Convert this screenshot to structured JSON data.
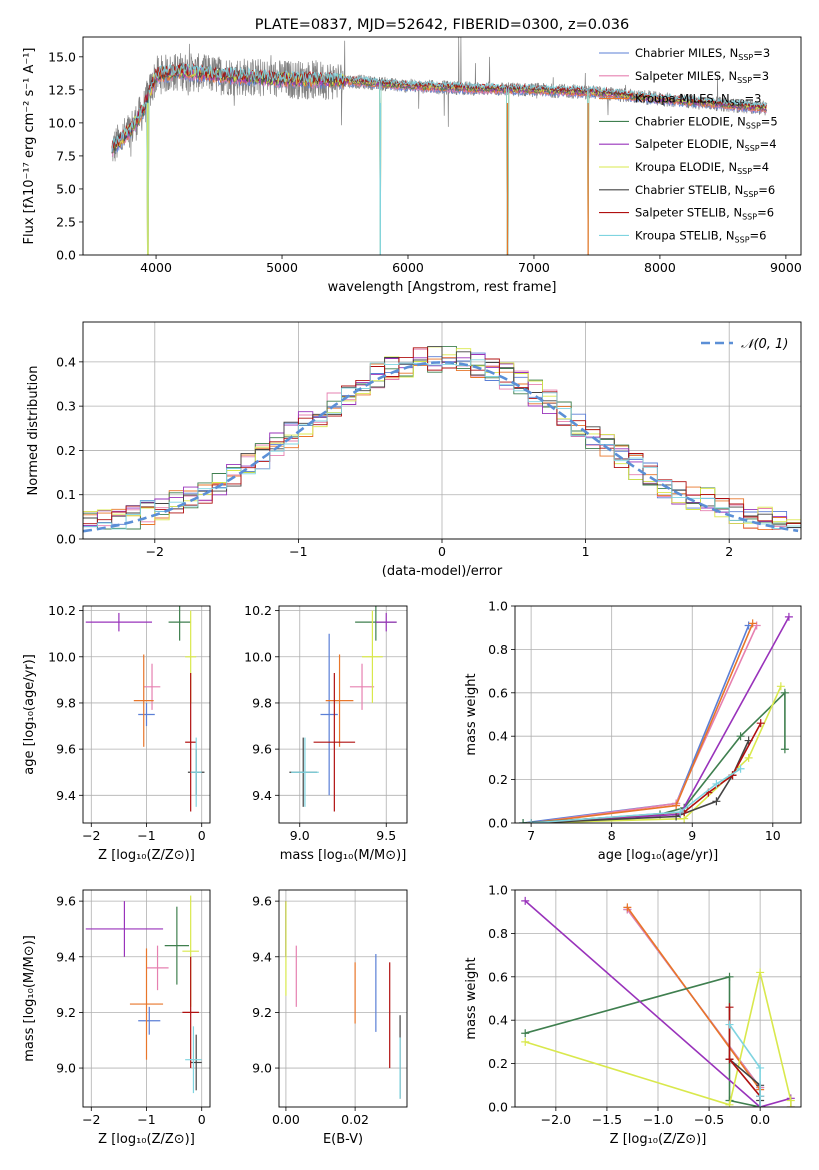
{
  "chart_data": [
    {
      "id": "spectrum",
      "type": "line",
      "title": "PLATE=0837, MJD=52642, FIBERID=0300, z=0.036",
      "xlabel": "wavelength [Angstrom, rest frame]",
      "ylabel": "Flux [fλ10⁻¹⁷ erg cm⁻² s⁻¹ A⁻¹]",
      "xlim": [
        3420,
        9120
      ],
      "ylim": [
        0,
        16.5
      ],
      "xticks": [
        4000,
        5000,
        6000,
        7000,
        8000,
        9000
      ],
      "yticks": [
        0,
        2.5,
        5.0,
        7.5,
        10.0,
        12.5,
        15.0
      ],
      "legend_position": "upper-right",
      "grid": false,
      "legend": [
        {
          "label": "Chabrier MILES, N",
          "sub": "SSP",
          "suffix": "=3",
          "color": "#5b7fd6"
        },
        {
          "label": "Salpeter MILES, N",
          "sub": "SSP",
          "suffix": "=3",
          "color": "#e680b0"
        },
        {
          "label": "Kroupa MILES, N",
          "sub": "SSP",
          "suffix": "=3",
          "color": "#e8762a"
        },
        {
          "label": "Chabrier ELODIE, N",
          "sub": "SSP",
          "suffix": "=5",
          "color": "#3f7f4f"
        },
        {
          "label": "Salpeter ELODIE, N",
          "sub": "SSP",
          "suffix": "=4",
          "color": "#9933bb"
        },
        {
          "label": "Kroupa ELODIE, N",
          "sub": "SSP",
          "suffix": "=4",
          "color": "#d9e84c"
        },
        {
          "label": "Chabrier STELIB, N",
          "sub": "SSP",
          "suffix": "=6",
          "color": "#444444"
        },
        {
          "label": "Salpeter STELIB, N",
          "sub": "SSP",
          "suffix": "=6",
          "color": "#b01010"
        },
        {
          "label": "Kroupa STELIB, N",
          "sub": "SSP",
          "suffix": "=6",
          "color": "#7fd4e0"
        }
      ],
      "data_color": "#808080",
      "continuum": {
        "x": [
          3650,
          3800,
          3900,
          4000,
          4200,
          4500,
          5000,
          5500,
          6000,
          6500,
          7000,
          7500,
          8000,
          8500,
          8850
        ],
        "y": [
          8.0,
          9.5,
          11.0,
          13.6,
          13.9,
          13.6,
          13.3,
          13.2,
          12.8,
          12.6,
          12.5,
          12.3,
          11.8,
          11.4,
          11.1
        ]
      },
      "dips": [
        {
          "x": 3935,
          "y": 0.0
        },
        {
          "x": 5780,
          "y": 0.0
        },
        {
          "x": 6790,
          "y": 0.0
        },
        {
          "x": 7430,
          "y": 0.0
        }
      ]
    },
    {
      "id": "residuals",
      "type": "line",
      "xlabel": "(data-model)/error",
      "ylabel": "Normed distribution",
      "xlim": [
        -2.5,
        2.5
      ],
      "ylim": [
        0,
        0.49
      ],
      "xticks": [
        -2,
        -1,
        0,
        1,
        2
      ],
      "yticks": [
        0.0,
        0.1,
        0.2,
        0.3,
        0.4
      ],
      "grid": true,
      "legend": [
        {
          "label": "𝒩(0, 1)",
          "color": "#5b8fd6"
        }
      ],
      "legend_position": "upper-right",
      "normal_curve": {
        "mu": 0,
        "sigma": 1
      }
    },
    {
      "id": "age-vs-Z",
      "type": "scatter",
      "xlabel": "Z [log₁₀(Z/Z⊙)]",
      "ylabel": "age  [log₁₀(age/yr)]",
      "xlim": [
        -2.15,
        0.15
      ],
      "ylim": [
        9.28,
        10.22
      ],
      "xticks": [
        -2,
        -1,
        0
      ],
      "yticks": [
        9.4,
        9.6,
        9.8,
        10.0,
        10.2
      ],
      "grid": true,
      "points": [
        {
          "x": -1.0,
          "y": 9.75,
          "xerr": 0.15,
          "yerr": 0.05,
          "color": "#5b7fd6"
        },
        {
          "x": -0.9,
          "y": 9.87,
          "xerr": 0.15,
          "yerr": 0.1,
          "color": "#e680b0"
        },
        {
          "x": -1.05,
          "y": 9.81,
          "xerr": 0.18,
          "yerr": 0.2,
          "color": "#e8762a"
        },
        {
          "x": -0.4,
          "y": 10.15,
          "xerr": 0.2,
          "yerr": 0.08,
          "color": "#3f7f4f"
        },
        {
          "x": -1.5,
          "y": 10.15,
          "xerr": 0.6,
          "yerr": 0.04,
          "color": "#9933bb"
        },
        {
          "x": -0.2,
          "y": 10.0,
          "xerr": 0.1,
          "yerr": 0.2,
          "color": "#d9e84c"
        },
        {
          "x": -0.1,
          "y": 9.5,
          "xerr": 0.15,
          "yerr": 0.1,
          "color": "#444444"
        },
        {
          "x": -0.2,
          "y": 9.63,
          "xerr": 0.1,
          "yerr": 0.3,
          "color": "#b01010"
        },
        {
          "x": -0.1,
          "y": 9.5,
          "xerr": 0.1,
          "yerr": 0.15,
          "color": "#7fd4e0"
        }
      ]
    },
    {
      "id": "age-vs-mass",
      "type": "scatter",
      "xlabel": "mass [log₁₀(M/M⊙)]",
      "ylabel": "",
      "xlim": [
        8.88,
        9.62
      ],
      "ylim": [
        9.28,
        10.22
      ],
      "xticks": [
        9.0,
        9.5
      ],
      "yticks": [
        9.4,
        9.6,
        9.8,
        10.0,
        10.2
      ],
      "grid": true,
      "points": [
        {
          "x": 9.17,
          "y": 9.75,
          "xerr": 0.05,
          "yerr": 0.35,
          "color": "#5b7fd6"
        },
        {
          "x": 9.36,
          "y": 9.87,
          "xerr": 0.07,
          "yerr": 0.1,
          "color": "#e680b0"
        },
        {
          "x": 9.23,
          "y": 9.81,
          "xerr": 0.08,
          "yerr": 0.2,
          "color": "#e8762a"
        },
        {
          "x": 9.44,
          "y": 10.15,
          "xerr": 0.12,
          "yerr": 0.08,
          "color": "#3f7f4f"
        },
        {
          "x": 9.5,
          "y": 10.15,
          "xerr": 0.06,
          "yerr": 0.04,
          "color": "#9933bb"
        },
        {
          "x": 9.42,
          "y": 10.0,
          "xerr": 0.06,
          "yerr": 0.2,
          "color": "#d9e84c"
        },
        {
          "x": 9.02,
          "y": 9.5,
          "xerr": 0.08,
          "yerr": 0.15,
          "color": "#444444"
        },
        {
          "x": 9.2,
          "y": 9.63,
          "xerr": 0.12,
          "yerr": 0.3,
          "color": "#b01010"
        },
        {
          "x": 9.03,
          "y": 9.5,
          "xerr": 0.08,
          "yerr": 0.15,
          "color": "#7fd4e0"
        }
      ]
    },
    {
      "id": "weight-vs-age",
      "type": "line",
      "xlabel": "age  [log₁₀(age/yr)]",
      "ylabel": "mass weight",
      "xlim": [
        6.8,
        10.35
      ],
      "ylim": [
        0,
        1.0
      ],
      "xticks": [
        7,
        8,
        9,
        10
      ],
      "yticks": [
        0.0,
        0.2,
        0.4,
        0.6,
        0.8,
        1.0
      ],
      "grid": true,
      "series": [
        {
          "color": "#5b7fd6",
          "x": [
            6.9,
            8.8,
            9.7
          ],
          "y": [
            0.0,
            0.09,
            0.91
          ]
        },
        {
          "color": "#e680b0",
          "x": [
            7.0,
            8.8,
            9.8
          ],
          "y": [
            0.0,
            0.09,
            0.91
          ]
        },
        {
          "color": "#e8762a",
          "x": [
            7.0,
            8.8,
            9.75
          ],
          "y": [
            0.0,
            0.08,
            0.92
          ]
        },
        {
          "color": "#3f7f4f",
          "x": [
            6.9,
            8.6,
            8.9,
            9.6,
            10.15,
            10.15
          ],
          "y": [
            0.0,
            0.04,
            0.07,
            0.4,
            0.6,
            0.34
          ]
        },
        {
          "color": "#9933bb",
          "x": [
            7.0,
            8.85,
            10.2
          ],
          "y": [
            0.0,
            0.04,
            0.95
          ]
        },
        {
          "color": "#d9e84c",
          "x": [
            7.0,
            8.9,
            9.7,
            10.1
          ],
          "y": [
            0.0,
            0.02,
            0.3,
            0.63
          ]
        },
        {
          "color": "#444444",
          "x": [
            7.0,
            8.8,
            9.3,
            9.5,
            9.7
          ],
          "y": [
            0.0,
            0.03,
            0.1,
            0.22,
            0.38
          ]
        },
        {
          "color": "#b01010",
          "x": [
            7.0,
            8.9,
            9.2,
            9.5,
            9.85
          ],
          "y": [
            0.0,
            0.05,
            0.14,
            0.22,
            0.46
          ]
        },
        {
          "color": "#7fd4e0",
          "x": [
            7.0,
            8.85,
            9.3,
            9.6
          ],
          "y": [
            0.0,
            0.05,
            0.18,
            0.25
          ]
        }
      ]
    },
    {
      "id": "mass-vs-Z",
      "type": "scatter",
      "xlabel": "Z [log₁₀(Z/Z⊙)]",
      "ylabel": "mass [log₁₀(M/M⊙)]",
      "xlim": [
        -2.15,
        0.15
      ],
      "ylim": [
        8.86,
        9.64
      ],
      "xticks": [
        -2,
        -1,
        0
      ],
      "yticks": [
        9.0,
        9.2,
        9.4,
        9.6
      ],
      "grid": true,
      "points": [
        {
          "x": -0.95,
          "y": 9.17,
          "xerr": 0.2,
          "yerr": 0.05,
          "color": "#5b7fd6"
        },
        {
          "x": -0.8,
          "y": 9.36,
          "xerr": 0.2,
          "yerr": 0.08,
          "color": "#e680b0"
        },
        {
          "x": -1.0,
          "y": 9.23,
          "xerr": 0.3,
          "yerr": 0.2,
          "color": "#e8762a"
        },
        {
          "x": -0.45,
          "y": 9.44,
          "xerr": 0.22,
          "yerr": 0.14,
          "color": "#3f7f4f"
        },
        {
          "x": -1.4,
          "y": 9.5,
          "xerr": 0.7,
          "yerr": 0.1,
          "color": "#9933bb"
        },
        {
          "x": -0.2,
          "y": 9.42,
          "xerr": 0.15,
          "yerr": 0.2,
          "color": "#d9e84c"
        },
        {
          "x": -0.1,
          "y": 9.02,
          "xerr": 0.1,
          "yerr": 0.1,
          "color": "#444444"
        },
        {
          "x": -0.2,
          "y": 9.2,
          "xerr": 0.15,
          "yerr": 0.2,
          "color": "#b01010"
        },
        {
          "x": -0.15,
          "y": 9.03,
          "xerr": 0.15,
          "yerr": 0.12,
          "color": "#7fd4e0"
        }
      ]
    },
    {
      "id": "mass-vs-EBV",
      "type": "scatter",
      "xlabel": "E(B-V)",
      "ylabel": "",
      "xlim": [
        -0.002,
        0.035
      ],
      "ylim": [
        8.86,
        9.64
      ],
      "xticks": [
        0.0,
        0.02
      ],
      "yticks": [
        9.0,
        9.2,
        9.4,
        9.6
      ],
      "grid": true,
      "points": [
        {
          "x": 0.026,
          "y": 9.27,
          "xerr": 0,
          "yerr": 0.14,
          "color": "#5b7fd6"
        },
        {
          "x": 0.003,
          "y": 9.33,
          "xerr": 0,
          "yerr": 0.11,
          "color": "#e680b0"
        },
        {
          "x": 0.02,
          "y": 9.27,
          "xerr": 0,
          "yerr": 0.11,
          "color": "#e8762a"
        },
        {
          "x": 0.0,
          "y": 9.5,
          "xerr": 0,
          "yerr": 0.1,
          "color": "#3f7f4f"
        },
        {
          "x": 0.0,
          "y": 9.5,
          "xerr": 0,
          "yerr": 0.1,
          "color": "#9933bb"
        },
        {
          "x": 0.0,
          "y": 9.43,
          "xerr": 0,
          "yerr": 0.17,
          "color": "#d9e84c"
        },
        {
          "x": 0.033,
          "y": 9.04,
          "xerr": 0,
          "yerr": 0.15,
          "color": "#444444"
        },
        {
          "x": 0.03,
          "y": 9.19,
          "xerr": 0,
          "yerr": 0.19,
          "color": "#b01010"
        },
        {
          "x": 0.033,
          "y": 9.0,
          "xerr": 0,
          "yerr": 0.11,
          "color": "#7fd4e0"
        }
      ]
    },
    {
      "id": "weight-vs-Z",
      "type": "line",
      "xlabel": "Z [log₁₀(Z/Z⊙)]",
      "ylabel": "mass weight",
      "xlim": [
        -2.4,
        0.4
      ],
      "ylim": [
        0,
        1.0
      ],
      "xticks": [
        -2.0,
        -1.5,
        -1.0,
        -0.5,
        0.0
      ],
      "yticks": [
        0.0,
        0.2,
        0.4,
        0.6,
        0.8,
        1.0
      ],
      "grid": true,
      "series": [
        {
          "color": "#5b7fd6",
          "x": [
            -1.3,
            0.0,
            0.0
          ],
          "y": [
            0.91,
            0.09,
            0.0
          ]
        },
        {
          "color": "#e680b0",
          "x": [
            -1.3,
            0.0,
            0.0
          ],
          "y": [
            0.91,
            0.09,
            0.0
          ]
        },
        {
          "color": "#e8762a",
          "x": [
            -1.3,
            0.0,
            0.0
          ],
          "y": [
            0.92,
            0.08,
            0.0
          ]
        },
        {
          "color": "#3f7f4f",
          "x": [
            -2.3,
            -0.3,
            -0.3,
            0.0
          ],
          "y": [
            0.34,
            0.6,
            0.03,
            0.0
          ]
        },
        {
          "color": "#9933bb",
          "x": [
            -2.3,
            0.0,
            0.3,
            0.3
          ],
          "y": [
            0.95,
            0.0,
            0.04,
            0.0
          ]
        },
        {
          "color": "#d9e84c",
          "x": [
            -2.3,
            -0.3,
            0.0,
            0.3,
            0.3
          ],
          "y": [
            0.3,
            0.01,
            0.62,
            0.03,
            0.0
          ]
        },
        {
          "color": "#444444",
          "x": [
            -0.3,
            0.0,
            0.0,
            0.0
          ],
          "y": [
            0.22,
            0.1,
            0.03,
            0.0
          ]
        },
        {
          "color": "#b01010",
          "x": [
            -0.3,
            -0.3,
            0.0,
            0.0
          ],
          "y": [
            0.46,
            0.22,
            0.05,
            0.0
          ]
        },
        {
          "color": "#7fd4e0",
          "x": [
            -0.3,
            0.0,
            0.0,
            0.0
          ],
          "y": [
            0.38,
            0.18,
            0.05,
            0.0
          ]
        }
      ]
    }
  ]
}
